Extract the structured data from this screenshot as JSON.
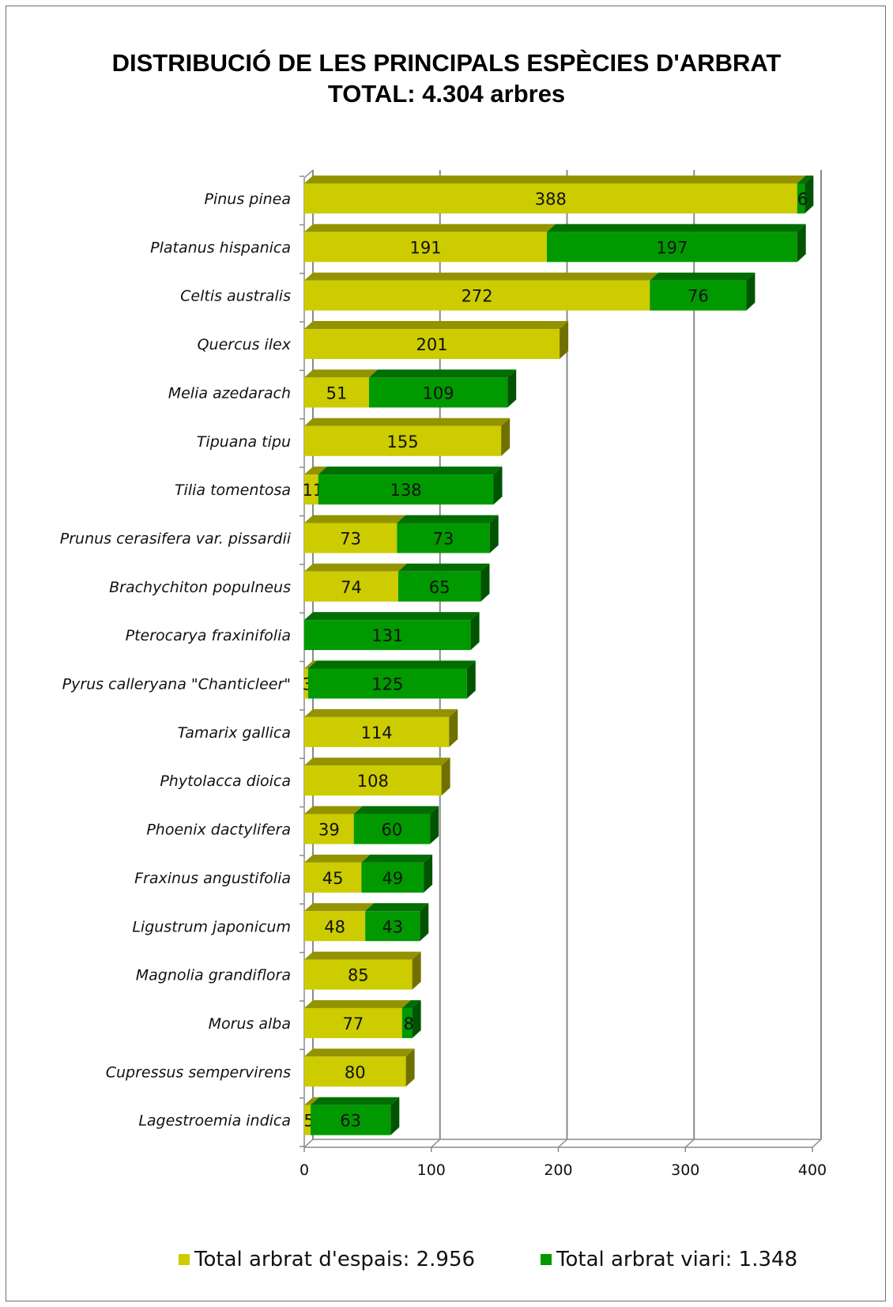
{
  "chart_data": {
    "type": "bar",
    "orientation": "horizontal",
    "stacked": true,
    "title": "DISTRIBUCIÓ DE LES PRINCIPALS ESPÈCIES D'ARBRAT",
    "subtitle": "TOTAL: 4.304 arbres",
    "categories": [
      "Pinus pinea",
      "Platanus hispanica",
      "Celtis australis",
      "Quercus ilex",
      "Melia azedarach",
      "Tipuana tipu",
      "Tilia tomentosa",
      "Prunus cerasifera var. pissardii",
      "Brachychiton populneus",
      "Pterocarya fraxinifolia",
      "Pyrus calleryana \"Chanticleer\"",
      "Tamarix gallica",
      "Phytolacca dioica",
      "Phoenix dactylifera",
      "Fraxinus angustifolia",
      "Ligustrum japonicum",
      "Magnolia grandiflora",
      "Morus alba",
      "Cupressus sempervirens",
      "Lagestroemia indica"
    ],
    "series": [
      {
        "name": "Total arbrat d'espais: 2.956",
        "color": "#cccc00",
        "values": [
          388,
          191,
          272,
          201,
          51,
          155,
          11,
          73,
          74,
          0,
          3,
          114,
          108,
          39,
          45,
          48,
          85,
          77,
          80,
          5
        ]
      },
      {
        "name": "Total arbrat viari: 1.348",
        "color": "#009900",
        "values": [
          6,
          197,
          76,
          0,
          109,
          0,
          138,
          73,
          65,
          131,
          125,
          0,
          0,
          60,
          49,
          43,
          0,
          8,
          0,
          63
        ]
      }
    ],
    "xlim": [
      0,
      400
    ],
    "xticks": [
      0,
      100,
      200,
      300,
      400
    ],
    "grid": true,
    "legend_position": "bottom"
  }
}
